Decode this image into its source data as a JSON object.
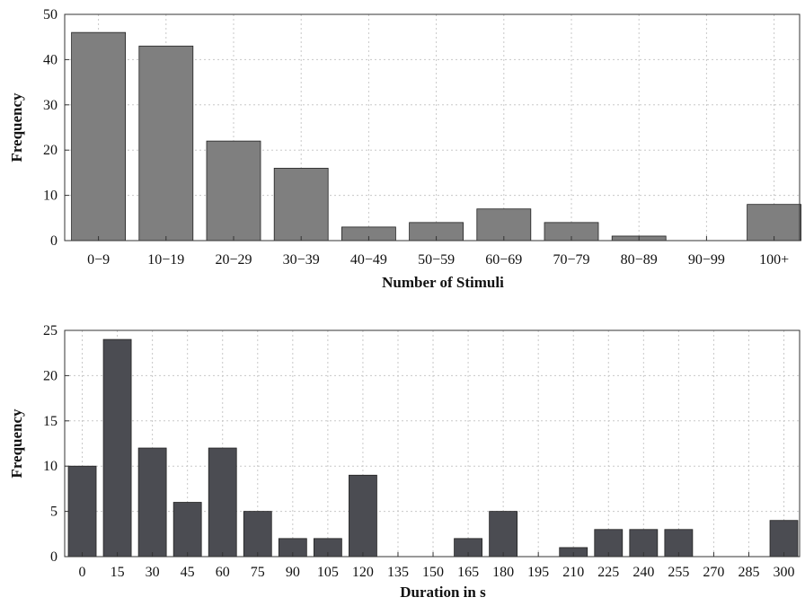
{
  "chart_data": [
    {
      "type": "bar",
      "categories": [
        "0−9",
        "10−19",
        "20−29",
        "30−39",
        "40−49",
        "50−59",
        "60−69",
        "70−79",
        "80−89",
        "90−99",
        "100+"
      ],
      "values": [
        46,
        43,
        22,
        16,
        3,
        4,
        7,
        4,
        1,
        0,
        8
      ],
      "title": "",
      "xlabel": "Number of Stimuli",
      "ylabel": "Frequency",
      "ylim": [
        0,
        50
      ],
      "yticks": [
        0,
        10,
        20,
        30,
        40,
        50
      ],
      "grid": true,
      "bar_color": "#7f7f7f"
    },
    {
      "type": "bar",
      "categories": [
        "0",
        "15",
        "30",
        "45",
        "60",
        "75",
        "90",
        "105",
        "120",
        "135",
        "150",
        "165",
        "180",
        "195",
        "210",
        "225",
        "240",
        "255",
        "270",
        "285",
        "300"
      ],
      "values": [
        10,
        24,
        12,
        6,
        12,
        5,
        2,
        2,
        9,
        0,
        0,
        2,
        5,
        0,
        1,
        3,
        3,
        3,
        0,
        0,
        4
      ],
      "title": "",
      "xlabel": "Duration in s",
      "ylabel": "Frequency",
      "ylim": [
        0,
        25
      ],
      "yticks": [
        0,
        5,
        10,
        15,
        20,
        25
      ],
      "grid": true,
      "bar_color": "#4b4c52"
    }
  ]
}
